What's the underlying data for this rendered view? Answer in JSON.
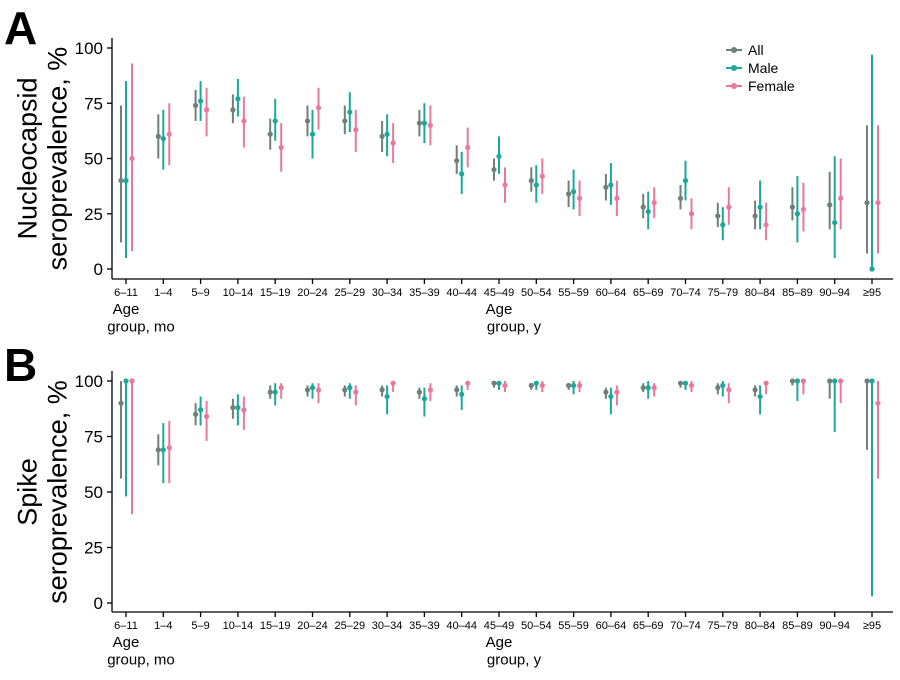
{
  "colors": {
    "All": "#6f7f7a",
    "Male": "#1aa89a",
    "Female": "#e8789e"
  },
  "legend": {
    "items": [
      "All",
      "Male",
      "Female"
    ]
  },
  "x_group_labels": [
    {
      "text": "Age\ngroup, mo",
      "category_index": 0
    },
    {
      "text": "Age\ngroup, y",
      "category_index": 10
    }
  ],
  "chart_data": [
    {
      "panel": "A",
      "type": "scatter",
      "ylabel": "Nucleocapsid\nseroprevalence, %",
      "ylim": [
        0,
        100
      ],
      "yticks": [
        0,
        25,
        50,
        75,
        100
      ],
      "categories": [
        "6–11",
        "1–4",
        "5–9",
        "10–14",
        "15–19",
        "20–24",
        "25–29",
        "30–34",
        "35–39",
        "40–44",
        "45–49",
        "50–54",
        "55–59",
        "60–64",
        "65–69",
        "70–74",
        "75–79",
        "80–84",
        "85–89",
        "90–94",
        "≥95"
      ],
      "series": [
        {
          "name": "All",
          "values": [
            40,
            60,
            74,
            72,
            61,
            67,
            67,
            60,
            66,
            49,
            45,
            40,
            34,
            37,
            28,
            32,
            24,
            24,
            28,
            29,
            30
          ],
          "lower": [
            12,
            50,
            67,
            66,
            54,
            60,
            61,
            53,
            60,
            43,
            40,
            35,
            28,
            31,
            23,
            27,
            19,
            18,
            22,
            18,
            7
          ],
          "upper": [
            74,
            70,
            81,
            79,
            68,
            74,
            74,
            67,
            72,
            56,
            50,
            46,
            40,
            43,
            34,
            38,
            30,
            31,
            37,
            44,
            65
          ]
        },
        {
          "name": "Male",
          "values": [
            40,
            59,
            76,
            77,
            67,
            61,
            71,
            61,
            66,
            43,
            51,
            38,
            35,
            38,
            26,
            40,
            20,
            28,
            25,
            21,
            0
          ],
          "lower": [
            5,
            45,
            67,
            69,
            58,
            50,
            62,
            51,
            57,
            34,
            43,
            30,
            27,
            29,
            18,
            31,
            13,
            18,
            12,
            5,
            0
          ],
          "upper": [
            85,
            72,
            85,
            86,
            77,
            72,
            80,
            70,
            75,
            53,
            60,
            47,
            45,
            48,
            35,
            49,
            28,
            40,
            42,
            51,
            97
          ]
        },
        {
          "name": "Female",
          "values": [
            50,
            61,
            72,
            67,
            55,
            73,
            63,
            57,
            65,
            55,
            38,
            42,
            32,
            32,
            30,
            25,
            28,
            20,
            27,
            32,
            30
          ],
          "lower": [
            8,
            47,
            60,
            55,
            44,
            63,
            53,
            48,
            56,
            46,
            30,
            34,
            24,
            24,
            23,
            18,
            20,
            13,
            17,
            18,
            7
          ],
          "upper": [
            93,
            75,
            82,
            78,
            66,
            82,
            72,
            66,
            74,
            64,
            46,
            50,
            40,
            40,
            37,
            32,
            37,
            30,
            39,
            50,
            65
          ]
        }
      ]
    },
    {
      "panel": "B",
      "type": "scatter",
      "ylabel": "Spike\nseroprevalence, %",
      "ylim": [
        0,
        100
      ],
      "yticks": [
        0,
        25,
        50,
        75,
        100
      ],
      "categories": [
        "6–11",
        "1–4",
        "5–9",
        "10–14",
        "15–19",
        "20–24",
        "25–29",
        "30–34",
        "35–39",
        "40–44",
        "45–49",
        "50–54",
        "55–59",
        "60–64",
        "65–69",
        "70–74",
        "75–79",
        "80–84",
        "85–89",
        "90–94",
        "≥95"
      ],
      "series": [
        {
          "name": "All",
          "values": [
            90,
            69,
            85,
            88,
            95,
            96,
            96,
            96,
            95,
            96,
            99,
            98,
            98,
            95,
            97,
            99,
            97,
            96,
            100,
            100,
            100
          ],
          "lower": [
            56,
            62,
            80,
            83,
            92,
            93,
            93,
            93,
            92,
            93,
            97,
            96,
            96,
            92,
            95,
            97,
            94,
            93,
            98,
            92,
            69
          ],
          "upper": [
            100,
            76,
            90,
            92,
            98,
            98,
            98,
            98,
            97,
            98,
            100,
            99,
            99,
            97,
            99,
            100,
            99,
            98,
            100,
            100,
            100
          ]
        },
        {
          "name": "Male",
          "values": [
            100,
            69,
            87,
            88,
            95,
            97,
            97,
            93,
            92,
            94,
            99,
            99,
            98,
            93,
            97,
            99,
            98,
            93,
            100,
            100,
            100
          ],
          "lower": [
            48,
            54,
            80,
            80,
            89,
            92,
            92,
            85,
            84,
            87,
            96,
            96,
            94,
            85,
            92,
            96,
            93,
            85,
            91,
            77,
            3
          ],
          "upper": [
            100,
            81,
            93,
            94,
            99,
            99,
            99,
            98,
            97,
            98,
            100,
            100,
            100,
            97,
            100,
            100,
            100,
            98,
            100,
            100,
            100
          ]
        },
        {
          "name": "Female",
          "values": [
            100,
            70,
            84,
            87,
            97,
            96,
            95,
            99,
            96,
            99,
            98,
            98,
            98,
            95,
            97,
            98,
            96,
            99,
            100,
            100,
            90
          ],
          "lower": [
            40,
            54,
            73,
            78,
            92,
            90,
            89,
            95,
            91,
            96,
            95,
            95,
            95,
            89,
            93,
            95,
            90,
            94,
            94,
            90,
            56
          ],
          "upper": [
            100,
            82,
            91,
            93,
            99,
            99,
            98,
            100,
            99,
            100,
            100,
            100,
            100,
            98,
            99,
            100,
            99,
            100,
            100,
            100,
            100
          ]
        }
      ]
    }
  ]
}
